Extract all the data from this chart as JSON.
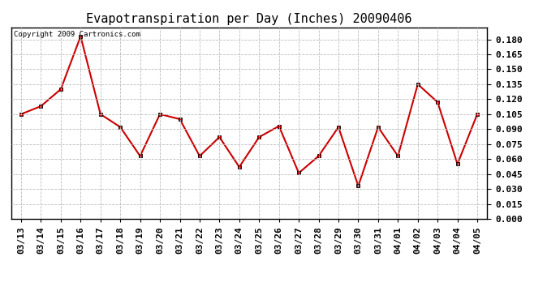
{
  "title": "Evapotranspiration per Day (Inches) 20090406",
  "copyright_text": "Copyright 2009 Cartronics.com",
  "dates": [
    "03/13",
    "03/14",
    "03/15",
    "03/16",
    "03/17",
    "03/18",
    "03/19",
    "03/20",
    "03/21",
    "03/22",
    "03/23",
    "03/24",
    "03/25",
    "03/26",
    "03/27",
    "03/28",
    "03/29",
    "03/30",
    "03/31",
    "04/01",
    "04/02",
    "04/03",
    "04/04",
    "04/05"
  ],
  "values": [
    0.105,
    0.113,
    0.13,
    0.183,
    0.105,
    0.092,
    0.063,
    0.105,
    0.1,
    0.063,
    0.082,
    0.052,
    0.082,
    0.093,
    0.046,
    0.063,
    0.092,
    0.033,
    0.092,
    0.063,
    0.135,
    0.117,
    0.055,
    0.105
  ],
  "line_color": "#cc0000",
  "marker": "s",
  "marker_size": 3,
  "ylim": [
    0.0,
    0.192
  ],
  "yticks": [
    0.0,
    0.015,
    0.03,
    0.045,
    0.06,
    0.075,
    0.09,
    0.105,
    0.12,
    0.135,
    0.15,
    0.165,
    0.18
  ],
  "background_color": "#ffffff",
  "grid_color": "#bbbbbb",
  "title_fontsize": 11,
  "tick_fontsize": 8,
  "copyright_fontsize": 6.5,
  "figwidth": 6.9,
  "figheight": 3.75,
  "dpi": 100
}
